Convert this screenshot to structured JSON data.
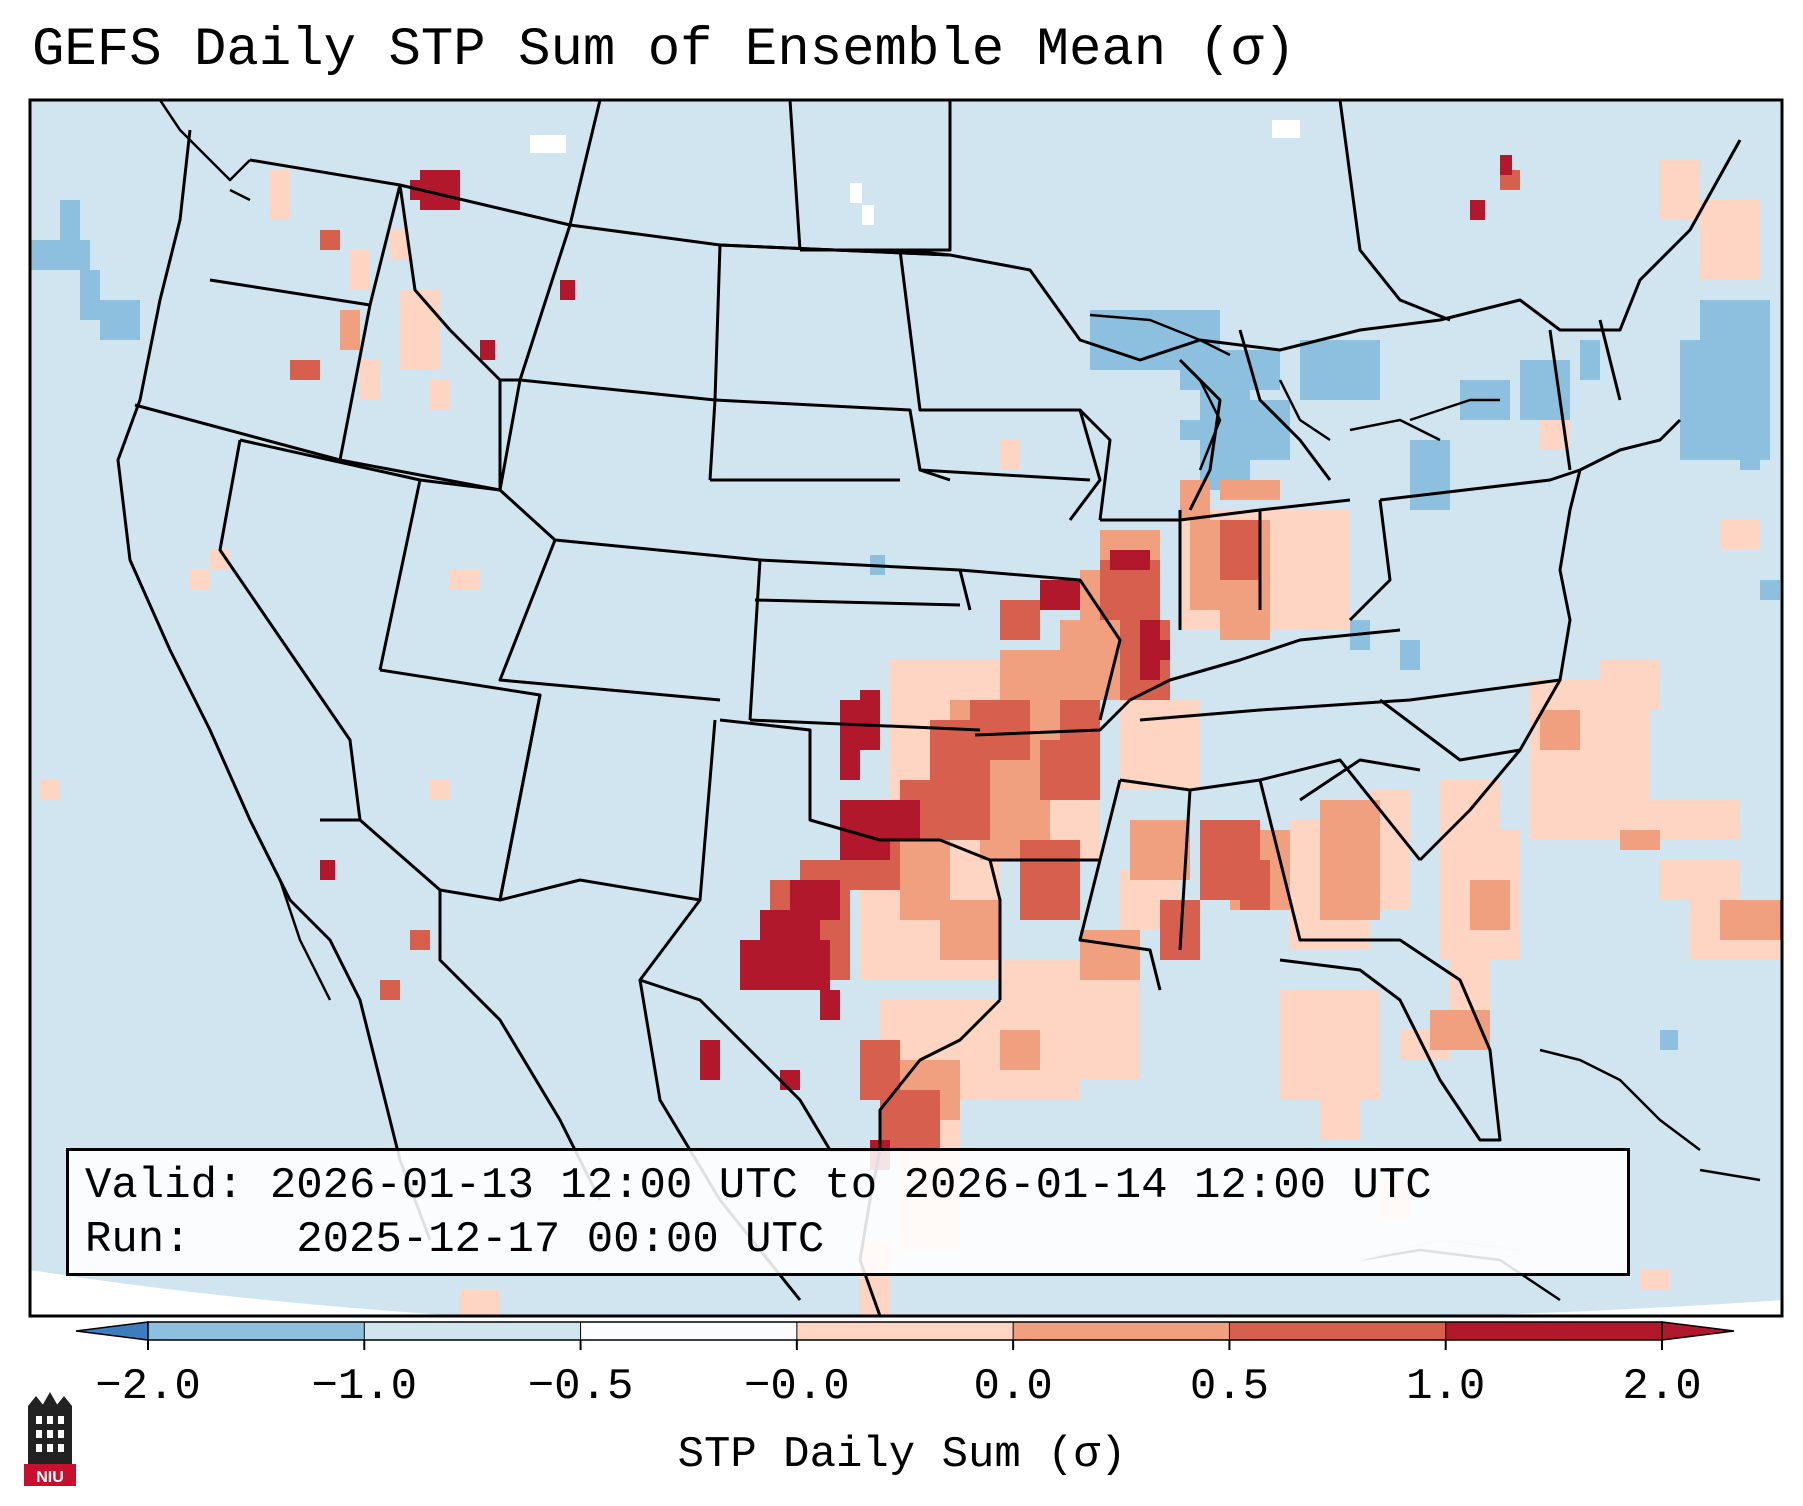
{
  "title": "GEFS Daily STP Sum of Ensemble Mean (σ)",
  "info_box": {
    "valid_label": "Valid:",
    "valid_value": "2026-01-13 12:00 UTC to 2026-01-14 12:00 UTC",
    "run_label": "Run:",
    "run_value": "2025-12-17 00:00 UTC"
  },
  "colorbar": {
    "label": "STP Daily Sum (σ)",
    "ticks": [
      "−2.0",
      "−1.0",
      "−0.5",
      "−0.0",
      "0.0",
      "0.5",
      "1.0",
      "2.0"
    ],
    "colors": [
      "#3d7cbf",
      "#8dc0de",
      "#d1e5f0",
      "#fbfcfd",
      "#fdd5c2",
      "#f0a07f",
      "#d6604d",
      "#b2182b"
    ],
    "extend": "both"
  },
  "map": {
    "background_color": "#d1e5f0",
    "region": "Contiguous United States, southern Canada, northern Mexico, western Atlantic and Gulf of Mexico"
  },
  "logo": {
    "text": "NIU",
    "name": "niu-logo"
  }
}
